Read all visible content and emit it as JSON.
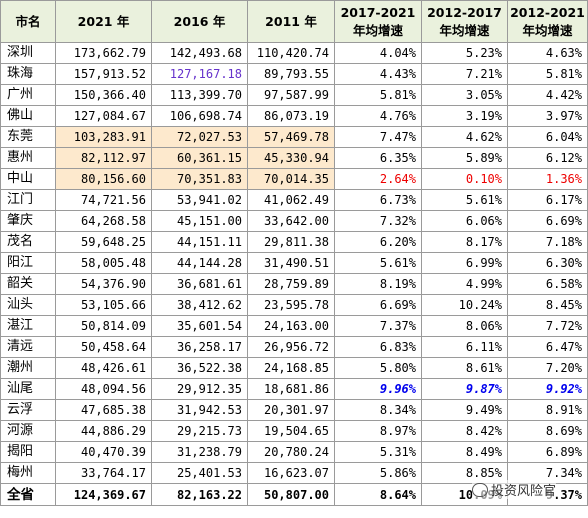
{
  "header": {
    "city": "市名",
    "y2021": "2021 年",
    "y2016": "2016 年",
    "y2011": "2011 年",
    "g1721": [
      "2017-2021",
      "年均增速"
    ],
    "g1217": [
      "2012-2017",
      "年均增速"
    ],
    "g1221": [
      "2012-2021",
      "年均增速"
    ]
  },
  "rows": [
    {
      "city": "深圳",
      "y2021": "173,662.79",
      "y2016": "142,493.68",
      "y2011": "110,420.74",
      "g1721": "4.04%",
      "g1217": "5.23%",
      "g1221": "4.63%"
    },
    {
      "city": "珠海",
      "y2021": "157,913.52",
      "y2016": "127,167.18",
      "y2011": "89,793.55",
      "g1721": "4.43%",
      "g1217": "7.21%",
      "g1221": "5.81%"
    },
    {
      "city": "广州",
      "y2021": "150,366.40",
      "y2016": "113,399.70",
      "y2011": "97,587.99",
      "g1721": "5.81%",
      "g1217": "3.05%",
      "g1221": "4.42%"
    },
    {
      "city": "佛山",
      "y2021": "127,084.67",
      "y2016": "106,698.74",
      "y2011": "86,073.19",
      "g1721": "4.76%",
      "g1217": "3.19%",
      "g1221": "3.97%"
    },
    {
      "city": "东莞",
      "y2021": "103,283.91",
      "y2016": "72,027.53",
      "y2011": "57,469.78",
      "g1721": "7.47%",
      "g1217": "4.62%",
      "g1221": "6.04%"
    },
    {
      "city": "惠州",
      "y2021": "82,112.97",
      "y2016": "60,361.15",
      "y2011": "45,330.94",
      "g1721": "6.35%",
      "g1217": "5.89%",
      "g1221": "6.12%"
    },
    {
      "city": "中山",
      "y2021": "80,156.60",
      "y2016": "70,351.83",
      "y2011": "70,014.35",
      "g1721": "2.64%",
      "g1217": "0.10%",
      "g1221": "1.36%"
    },
    {
      "city": "江门",
      "y2021": "74,721.56",
      "y2016": "53,941.02",
      "y2011": "41,062.49",
      "g1721": "6.73%",
      "g1217": "5.61%",
      "g1221": "6.17%"
    },
    {
      "city": "肇庆",
      "y2021": "64,268.58",
      "y2016": "45,151.00",
      "y2011": "33,642.00",
      "g1721": "7.32%",
      "g1217": "6.06%",
      "g1221": "6.69%"
    },
    {
      "city": "茂名",
      "y2021": "59,648.25",
      "y2016": "44,151.11",
      "y2011": "29,811.38",
      "g1721": "6.20%",
      "g1217": "8.17%",
      "g1221": "7.18%"
    },
    {
      "city": "阳江",
      "y2021": "58,005.48",
      "y2016": "44,144.28",
      "y2011": "31,490.51",
      "g1721": "5.61%",
      "g1217": "6.99%",
      "g1221": "6.30%"
    },
    {
      "city": "韶关",
      "y2021": "54,376.90",
      "y2016": "36,681.61",
      "y2011": "28,759.89",
      "g1721": "8.19%",
      "g1217": "4.99%",
      "g1221": "6.58%"
    },
    {
      "city": "汕头",
      "y2021": "53,105.66",
      "y2016": "38,412.62",
      "y2011": "23,595.78",
      "g1721": "6.69%",
      "g1217": "10.24%",
      "g1221": "8.45%"
    },
    {
      "city": "湛江",
      "y2021": "50,814.09",
      "y2016": "35,601.54",
      "y2011": "24,163.00",
      "g1721": "7.37%",
      "g1217": "8.06%",
      "g1221": "7.72%"
    },
    {
      "city": "清远",
      "y2021": "50,458.64",
      "y2016": "36,258.17",
      "y2011": "26,956.72",
      "g1721": "6.83%",
      "g1217": "6.11%",
      "g1221": "6.47%"
    },
    {
      "city": "潮州",
      "y2021": "48,426.61",
      "y2016": "36,522.38",
      "y2011": "24,168.85",
      "g1721": "5.80%",
      "g1217": "8.61%",
      "g1221": "7.20%"
    },
    {
      "city": "汕尾",
      "y2021": "48,094.56",
      "y2016": "29,912.35",
      "y2011": "18,681.86",
      "g1721": "9.96%",
      "g1217": "9.87%",
      "g1221": "9.92%"
    },
    {
      "city": "云浮",
      "y2021": "47,685.38",
      "y2016": "31,942.53",
      "y2011": "20,301.97",
      "g1721": "8.34%",
      "g1217": "9.49%",
      "g1221": "8.91%"
    },
    {
      "city": "河源",
      "y2021": "44,886.29",
      "y2016": "29,215.73",
      "y2011": "19,504.65",
      "g1721": "8.97%",
      "g1217": "8.42%",
      "g1221": "8.69%"
    },
    {
      "city": "揭阳",
      "y2021": "40,470.39",
      "y2016": "31,238.79",
      "y2011": "20,780.24",
      "g1721": "5.31%",
      "g1217": "8.49%",
      "g1221": "6.89%"
    },
    {
      "city": "梅州",
      "y2021": "33,764.17",
      "y2016": "25,401.53",
      "y2011": "16,623.07",
      "g1721": "5.86%",
      "g1217": "8.85%",
      "g1221": "7.34%"
    }
  ],
  "total": {
    "city": "全省",
    "y2021": "124,369.67",
    "y2016": "82,163.22",
    "y2011": "50,807.00",
    "g1721": "8.64%",
    "g1217": "10.09%",
    "g1221": "9.37%"
  },
  "watermark": {
    "text": "投资风险官"
  },
  "colors": {
    "header_bg": "#eaf1dd",
    "highlight_bg": "#fde9cd",
    "red": "#ee0000",
    "blue": "#0000ee",
    "purple": "#6633cc"
  }
}
